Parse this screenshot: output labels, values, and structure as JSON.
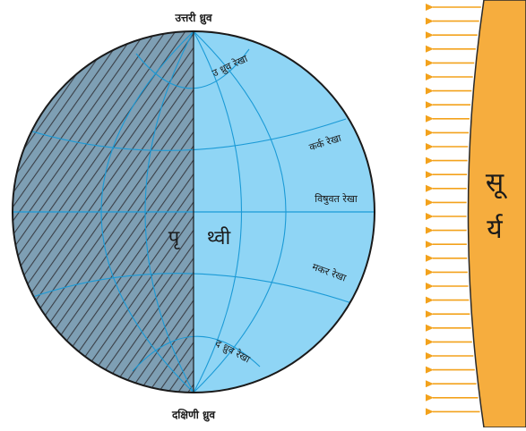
{
  "labels": {
    "north_pole": "उत्तरी ध्रुव",
    "south_pole": "दक्षिणी ध्रुव",
    "arctic_circle": "उ ध्रुव रेखा",
    "tropic_cancer": "कर्क रेखा",
    "equator": "विषुवत रेखा",
    "tropic_capricorn": "मकर रेखा",
    "antarctic_circle": "द ध्रुव रेखा",
    "earth_left": "पृ",
    "earth_right": "थ्वी",
    "sun_top": "सू",
    "sun_bottom": "र्य"
  },
  "colors": {
    "day_side": "#8fd5f5",
    "night_side": "#7e9fb4",
    "hatch": "#3a3f47",
    "grid_lines": "#1b9ad6",
    "outline": "#1a1a1a",
    "sun_fill": "#f6ad3e",
    "sun_edge": "#2a2a2a",
    "arrows": "#f3a21c"
  }
}
